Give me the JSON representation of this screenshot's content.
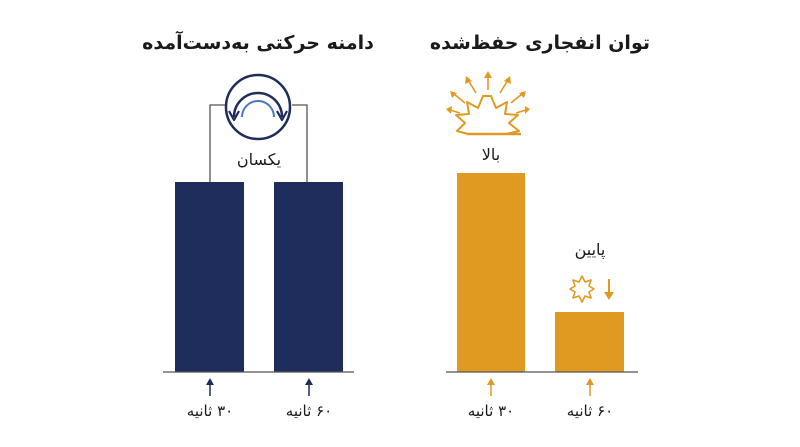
{
  "left_panel": {
    "title": "دامنه حرکتی به‌دست‌آمده",
    "annotation": "یکسان",
    "bars": [
      {
        "label": "۳۰ ثانیه",
        "value": 1.0
      },
      {
        "label": "۶۰ ثانیه",
        "value": 1.0
      }
    ],
    "color": "#1f2d5c"
  },
  "right_panel": {
    "title": "توان انفجاری حفظ‌شده",
    "bars": [
      {
        "label": "۳۰ ثانیه",
        "annotation": "بالا",
        "value": 1.0
      },
      {
        "label": "۶۰ ثانیه",
        "annotation": "پایین",
        "value": 0.3
      }
    ],
    "color": "#e09a22"
  },
  "icons": [
    "rotation-arrow-icon",
    "explosion-burst-icon",
    "small-burst-icon",
    "down-arrow-icon",
    "up-arrow-icon"
  ]
}
